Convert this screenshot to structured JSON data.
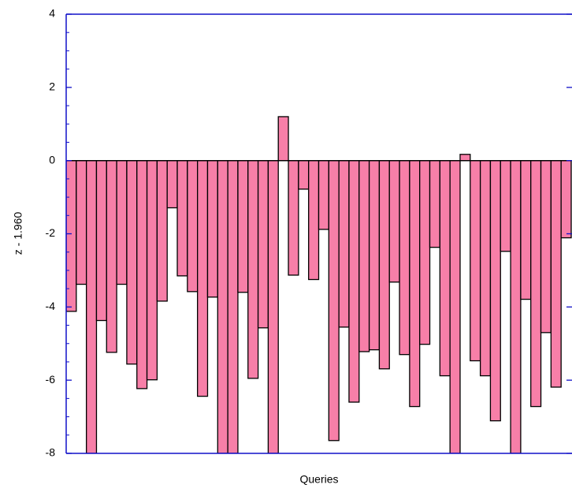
{
  "chart_data": {
    "type": "bar",
    "x_label": "Queries",
    "y_label": "z - 1.960",
    "values": [
      -4.12,
      -3.38,
      -8,
      -4.37,
      -5.24,
      -3.38,
      -5.56,
      -6.23,
      -5.99,
      -3.84,
      -1.29,
      -3.15,
      -3.58,
      -6.44,
      -3.73,
      -8,
      -8,
      -3.6,
      -5.95,
      -4.57,
      -8,
      1.2,
      -3.13,
      -0.78,
      -3.25,
      -1.88,
      -7.65,
      -4.55,
      -6.6,
      -5.22,
      -5.17,
      -5.69,
      -3.32,
      -5.3,
      -6.72,
      -5.02,
      -2.37,
      -5.88,
      -8,
      0.17,
      -5.47,
      -5.88,
      -7.11,
      -2.48,
      -8,
      -3.79,
      -6.72,
      -4.7,
      -6.19,
      -2.11
    ],
    "color": "#f77fa8",
    "ylim": [
      -8,
      4
    ],
    "yticks": [
      -8,
      -6,
      -4,
      -2,
      0,
      2,
      4
    ]
  }
}
